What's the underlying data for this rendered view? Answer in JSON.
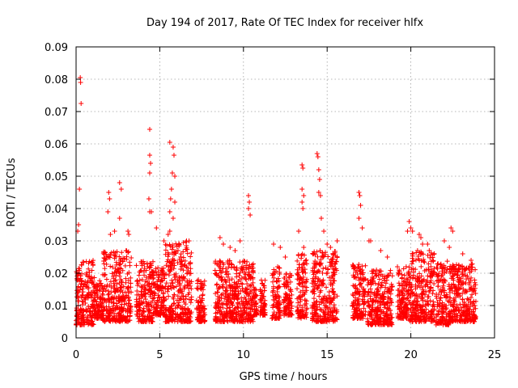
{
  "chart_data": {
    "type": "scatter",
    "title": "Day 194 of 2017, Rate Of TEC Index for receiver hlfx",
    "xlabel": "GPS time / hours",
    "ylabel": "ROTI / TECUs",
    "xlim": [
      0,
      25
    ],
    "ylim": [
      0,
      0.09
    ],
    "x_ticks": [
      0,
      5,
      10,
      15,
      20,
      25
    ],
    "x_tick_labels": [
      "0",
      "5",
      "10",
      "15",
      "20",
      "25"
    ],
    "y_ticks": [
      0,
      0.01,
      0.02,
      0.03,
      0.04,
      0.05,
      0.06,
      0.07,
      0.08,
      0.09
    ],
    "y_tick_labels": [
      "0",
      "0.01",
      "0.02",
      "0.03",
      "0.04",
      "0.05",
      "0.06",
      "0.07",
      "0.08",
      "0.09"
    ],
    "grid": true,
    "marker": "+",
    "color": "#ff0000",
    "series": [
      {
        "name": "ROTI",
        "points": [
          [
            0.25,
            0.0805
          ],
          [
            0.27,
            0.079
          ],
          [
            0.3,
            0.0725
          ],
          [
            0.2,
            0.046
          ],
          [
            0.15,
            0.035
          ],
          [
            0.1,
            0.033
          ],
          [
            1.95,
            0.045
          ],
          [
            2.0,
            0.043
          ],
          [
            1.9,
            0.039
          ],
          [
            2.6,
            0.048
          ],
          [
            2.7,
            0.046
          ],
          [
            2.6,
            0.037
          ],
          [
            3.1,
            0.033
          ],
          [
            3.15,
            0.032
          ],
          [
            2.3,
            0.033
          ],
          [
            2.05,
            0.032
          ],
          [
            4.4,
            0.0645
          ],
          [
            4.4,
            0.0565
          ],
          [
            4.45,
            0.054
          ],
          [
            4.4,
            0.051
          ],
          [
            4.35,
            0.043
          ],
          [
            4.4,
            0.039
          ],
          [
            4.5,
            0.039
          ],
          [
            4.8,
            0.034
          ],
          [
            5.25,
            0.03
          ],
          [
            5.6,
            0.0605
          ],
          [
            5.8,
            0.059
          ],
          [
            5.85,
            0.0565
          ],
          [
            5.75,
            0.051
          ],
          [
            5.9,
            0.05
          ],
          [
            5.7,
            0.046
          ],
          [
            5.65,
            0.043
          ],
          [
            5.9,
            0.042
          ],
          [
            5.6,
            0.039
          ],
          [
            5.8,
            0.037
          ],
          [
            5.6,
            0.033
          ],
          [
            5.5,
            0.032
          ],
          [
            6.6,
            0.03
          ],
          [
            6.75,
            0.03
          ],
          [
            8.6,
            0.031
          ],
          [
            8.8,
            0.029
          ],
          [
            9.2,
            0.028
          ],
          [
            9.5,
            0.027
          ],
          [
            9.8,
            0.03
          ],
          [
            10.3,
            0.044
          ],
          [
            10.35,
            0.042
          ],
          [
            10.3,
            0.04
          ],
          [
            10.4,
            0.038
          ],
          [
            11.8,
            0.029
          ],
          [
            12.2,
            0.028
          ],
          [
            12.5,
            0.025
          ],
          [
            13.5,
            0.0535
          ],
          [
            13.55,
            0.0525
          ],
          [
            13.5,
            0.046
          ],
          [
            13.6,
            0.044
          ],
          [
            13.5,
            0.042
          ],
          [
            13.55,
            0.04
          ],
          [
            13.3,
            0.033
          ],
          [
            13.6,
            0.028
          ],
          [
            14.4,
            0.057
          ],
          [
            14.45,
            0.056
          ],
          [
            14.5,
            0.052
          ],
          [
            14.55,
            0.049
          ],
          [
            14.5,
            0.045
          ],
          [
            14.6,
            0.044
          ],
          [
            14.65,
            0.037
          ],
          [
            14.8,
            0.033
          ],
          [
            15.0,
            0.029
          ],
          [
            15.2,
            0.028
          ],
          [
            15.6,
            0.03
          ],
          [
            16.9,
            0.045
          ],
          [
            16.95,
            0.044
          ],
          [
            17.0,
            0.041
          ],
          [
            16.9,
            0.037
          ],
          [
            17.1,
            0.034
          ],
          [
            17.5,
            0.03
          ],
          [
            17.6,
            0.03
          ],
          [
            18.2,
            0.027
          ],
          [
            18.6,
            0.025
          ],
          [
            19.2,
            0.022
          ],
          [
            19.9,
            0.036
          ],
          [
            20.0,
            0.034
          ],
          [
            19.8,
            0.033
          ],
          [
            20.1,
            0.033
          ],
          [
            20.5,
            0.032
          ],
          [
            20.6,
            0.031
          ],
          [
            20.7,
            0.029
          ],
          [
            21.0,
            0.029
          ],
          [
            20.4,
            0.027
          ],
          [
            21.1,
            0.027
          ],
          [
            22.4,
            0.034
          ],
          [
            22.5,
            0.033
          ],
          [
            22.0,
            0.03
          ],
          [
            22.3,
            0.028
          ],
          [
            23.1,
            0.026
          ],
          [
            23.6,
            0.024
          ]
        ]
      }
    ]
  }
}
